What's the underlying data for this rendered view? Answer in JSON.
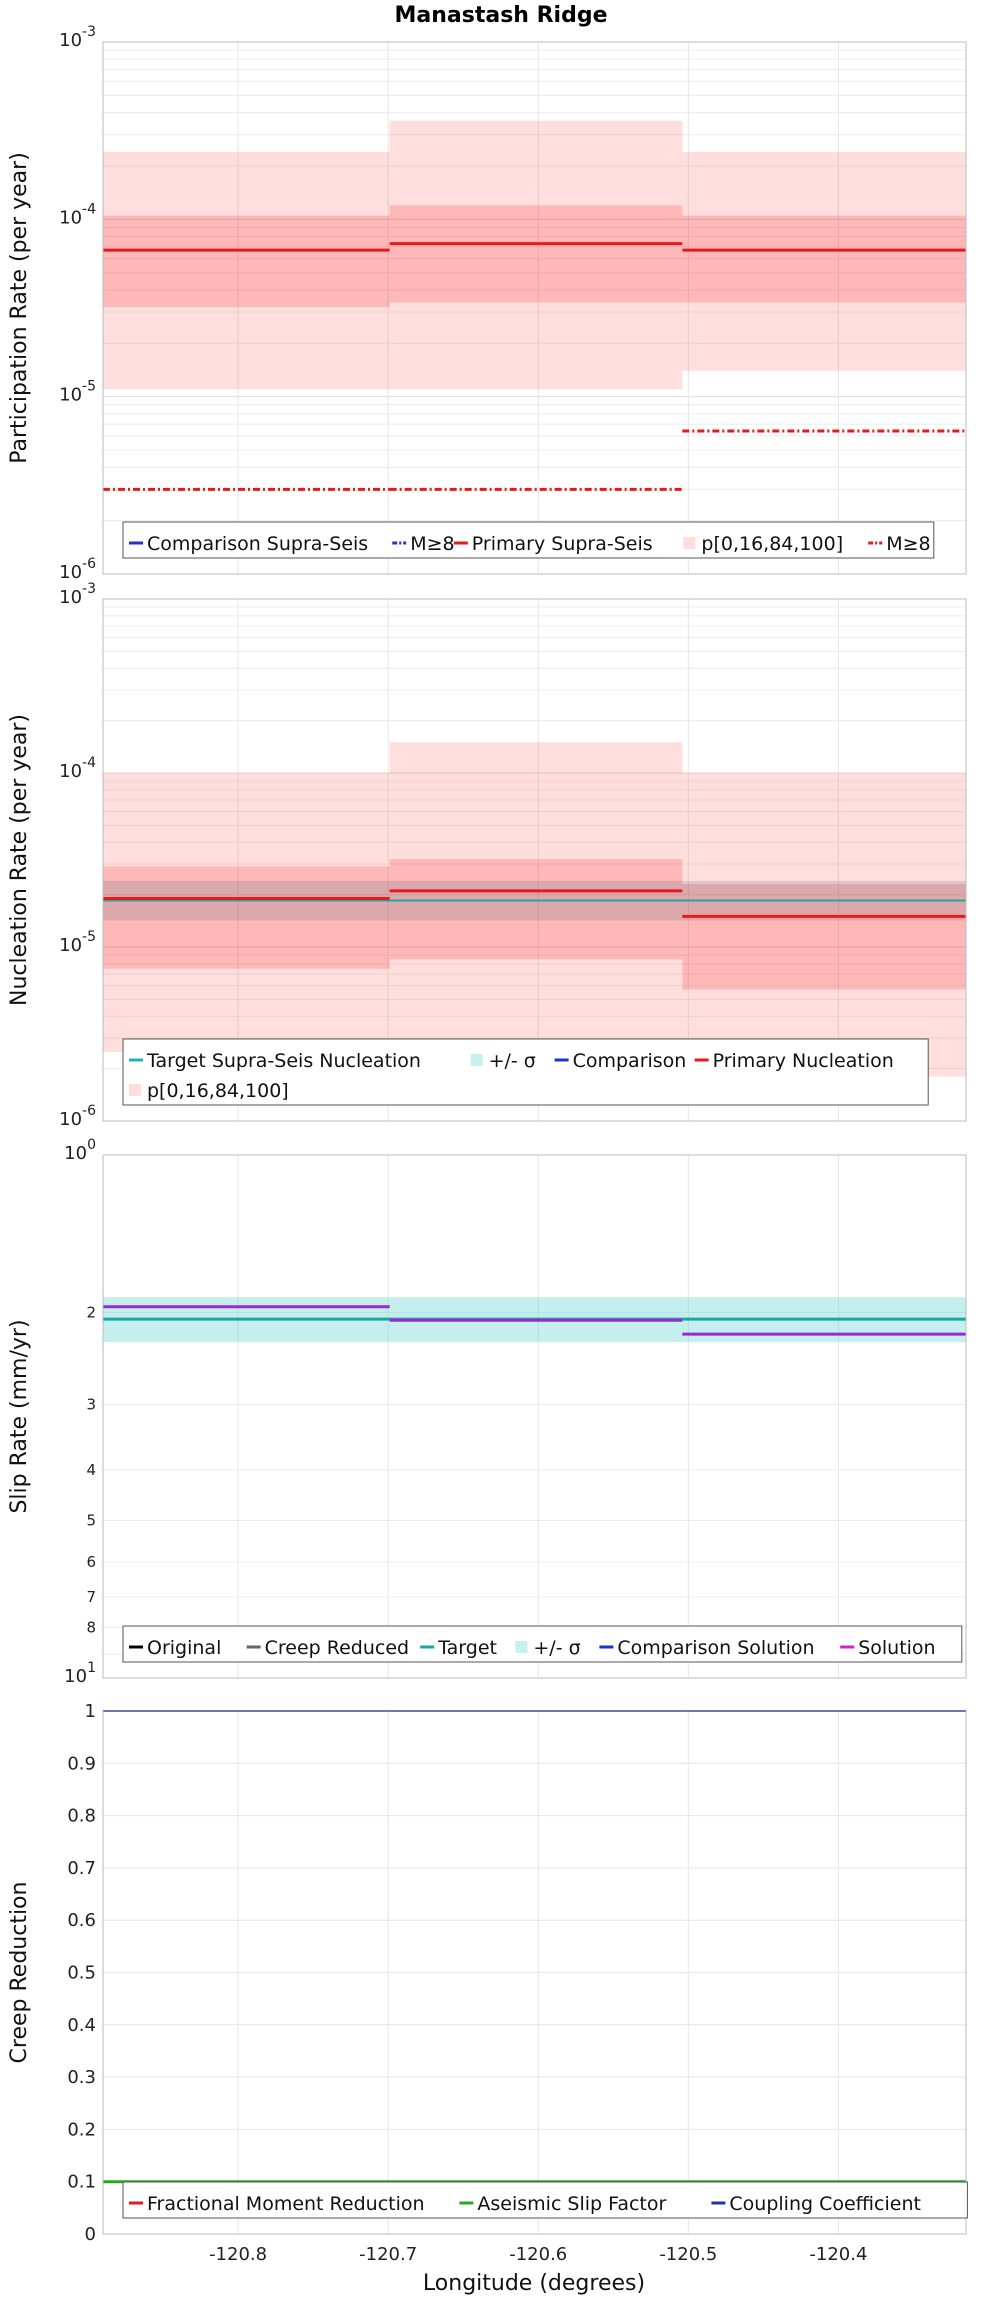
{
  "chart_data": {
    "title": "Manastash Ridge",
    "xlabel": "Longitude (degrees)",
    "xlim": [
      -120.89,
      -120.315
    ],
    "xticks": [
      -120.8,
      -120.7,
      -120.6,
      -120.5,
      -120.4
    ],
    "xtick_labels": [
      "-120.8",
      "-120.7",
      "-120.6",
      "-120.5",
      "-120.4"
    ],
    "sections": [
      {
        "x0": -120.89,
        "x1": -120.699
      },
      {
        "x0": -120.699,
        "x1": -120.504
      },
      {
        "x0": -120.504,
        "x1": -120.315
      }
    ],
    "panels": [
      {
        "id": "participation",
        "type": "step",
        "ylabel": "Participation Rate (per year)",
        "yscale": "log",
        "ylim": [
          1e-06,
          0.001
        ],
        "yticks": [
          {
            "base": "10",
            "exp": "-3",
            "value": 0.001
          },
          {
            "base": "10",
            "exp": "-4",
            "value": 0.0001
          },
          {
            "base": "10",
            "exp": "-5",
            "value": 1e-05
          },
          {
            "base": "10",
            "exp": "-6",
            "value": 1e-06
          }
        ],
        "bands": [
          {
            "name": "p[0,16,84,100]",
            "color": "#ff0000",
            "opacity": 0.13,
            "lo": [
              1.1e-05,
              1.1e-05,
              1.4e-05
            ],
            "hi": [
              0.00024,
              0.00036,
              0.00024
            ]
          },
          {
            "name": "p[0,16,84,100]",
            "color": "#ff0000",
            "opacity": 0.17,
            "lo": [
              3.2e-05,
              3.4e-05,
              3.4e-05
            ],
            "hi": [
              0.000105,
              0.00012,
              0.000105
            ]
          }
        ],
        "series": [
          {
            "name": "Primary Supra-Seis",
            "color": "#e41a1c",
            "width": 3,
            "dash": "",
            "values": [
              6.7e-05,
              7.3e-05,
              6.7e-05
            ]
          },
          {
            "name": "M≥8",
            "color": "#e41a1c",
            "width": 3,
            "dash": "7,3,2,3",
            "values": [
              3e-06,
              3e-06,
              6.4e-06
            ]
          }
        ],
        "legend": {
          "rows": [
            [
              {
                "label": "Comparison Supra-Seis",
                "color": "#2233cc",
                "style": "line",
                "dash": ""
              },
              {
                "label": "M≥8",
                "color": "#2233cc",
                "style": "line",
                "dash": "5,2,2,2"
              },
              {
                "label": "Primary Supra-Seis",
                "color": "#e41a1c",
                "style": "line",
                "dash": ""
              },
              {
                "label": "p[0,16,84,100]",
                "color": "#ffdddd",
                "style": "box",
                "dash": ""
              },
              {
                "label": "M≥8",
                "color": "#e41a1c",
                "style": "line",
                "dash": "5,2,2,2"
              }
            ]
          ]
        }
      },
      {
        "id": "nucleation",
        "type": "step",
        "ylabel": "Nucleation Rate (per year)",
        "yscale": "log",
        "ylim": [
          1e-06,
          0.001
        ],
        "yticks": [
          {
            "base": "10",
            "exp": "-3",
            "value": 0.001
          },
          {
            "base": "10",
            "exp": "-4",
            "value": 0.0001
          },
          {
            "base": "10",
            "exp": "-5",
            "value": 1e-05
          },
          {
            "base": "10",
            "exp": "-6",
            "value": 1e-06
          }
        ],
        "bands": [
          {
            "name": "p[0,16,84,100]",
            "color": "#ff0000",
            "opacity": 0.13,
            "lo": [
              2.5e-06,
              2.6e-06,
              1.8e-06
            ],
            "hi": [
              0.0001,
              0.00015,
              0.0001
            ]
          },
          {
            "name": "p[0,16,84,100]",
            "color": "#ff0000",
            "opacity": 0.17,
            "lo": [
              7.5e-06,
              8.5e-06,
              5.7e-06
            ],
            "hi": [
              2.9e-05,
              3.2e-05,
              2.3e-05
            ]
          },
          {
            "name": "+/- σ",
            "color": "#607080",
            "opacity": 0.22,
            "lo": [
              1.42e-05,
              1.42e-05,
              1.42e-05
            ],
            "hi": [
              2.4e-05,
              2.4e-05,
              2.4e-05
            ]
          }
        ],
        "series": [
          {
            "name": "Target Supra-Seis Nucleation",
            "color": "#1fa6a0",
            "width": 2,
            "dash": "",
            "values": [
              1.85e-05,
              1.85e-05,
              1.85e-05
            ]
          },
          {
            "name": "Primary Nucleation",
            "color": "#e41a1c",
            "width": 3,
            "dash": "",
            "values": [
              1.9e-05,
              2.1e-05,
              1.5e-05
            ]
          }
        ],
        "legend": {
          "rows": [
            [
              {
                "label": "Target Supra-Seis Nucleation",
                "color": "#1fb8b0",
                "style": "line",
                "dash": ""
              },
              {
                "label": "+/- σ",
                "color": "#c9f0f0",
                "style": "box",
                "dash": ""
              },
              {
                "label": "Comparison",
                "color": "#2233cc",
                "style": "line",
                "dash": ""
              },
              {
                "label": "Primary Nucleation",
                "color": "#e41a1c",
                "style": "line",
                "dash": ""
              }
            ],
            [
              {
                "label": "p[0,16,84,100]",
                "color": "#ffdddd",
                "style": "box",
                "dash": ""
              }
            ]
          ]
        }
      },
      {
        "id": "slip",
        "type": "step",
        "ylabel": "Slip Rate (mm/yr)",
        "yscale": "log",
        "ylim": [
          1,
          10
        ],
        "yticks": [
          {
            "base": "10",
            "exp": "0",
            "value": 1
          },
          {
            "base": "10",
            "exp": "1",
            "value": 10
          }
        ],
        "minor_ticks": [
          {
            "label": "2",
            "value": 2
          },
          {
            "label": "3",
            "value": 3
          },
          {
            "label": "4",
            "value": 4
          },
          {
            "label": "5",
            "value": 5
          },
          {
            "label": "6",
            "value": 6
          },
          {
            "label": "7",
            "value": 7
          },
          {
            "label": "8",
            "value": 8
          }
        ],
        "axis_inverted": true,
        "bands": [
          {
            "name": "+/- σ",
            "color": "#5ad0d0",
            "opacity": 0.35,
            "lo": [
              1.87,
              1.87,
              1.87
            ],
            "hi": [
              2.28,
              2.28,
              2.28
            ]
          }
        ],
        "series": [
          {
            "name": "Target",
            "color": "#1aa69e",
            "width": 3,
            "dash": "",
            "values": [
              2.06,
              2.06,
              2.06
            ]
          },
          {
            "name": "Solution",
            "color": "#9a2ad0",
            "width": 3,
            "dash": "",
            "values": [
              1.95,
              2.07,
              2.2
            ]
          }
        ],
        "legend": {
          "rows": [
            [
              {
                "label": "Original",
                "color": "#000000",
                "style": "line",
                "dash": ""
              },
              {
                "label": "Creep Reduced",
                "color": "#666666",
                "style": "line",
                "dash": ""
              },
              {
                "label": "Target",
                "color": "#1aa69e",
                "style": "line",
                "dash": ""
              },
              {
                "label": "+/- σ",
                "color": "#c9f0f0",
                "style": "box",
                "dash": ""
              },
              {
                "label": "Comparison Solution",
                "color": "#2233cc",
                "style": "line",
                "dash": ""
              },
              {
                "label": "Solution",
                "color": "#cc22cc",
                "style": "line",
                "dash": ""
              }
            ]
          ]
        }
      },
      {
        "id": "creep",
        "type": "step",
        "ylabel": "Creep Reduction",
        "yscale": "linear",
        "ylim": [
          0,
          1
        ],
        "yticks": [
          {
            "label": "1",
            "value": 1.0
          },
          {
            "label": "0.9",
            "value": 0.9
          },
          {
            "label": "0.8",
            "value": 0.8
          },
          {
            "label": "0.7",
            "value": 0.7
          },
          {
            "label": "0.6",
            "value": 0.6
          },
          {
            "label": "0.5",
            "value": 0.5
          },
          {
            "label": "0.4",
            "value": 0.4
          },
          {
            "label": "0.3",
            "value": 0.3
          },
          {
            "label": "0.2",
            "value": 0.2
          },
          {
            "label": "0.1",
            "value": 0.1
          },
          {
            "label": "0",
            "value": 0.0
          }
        ],
        "bands": [],
        "series": [
          {
            "name": "Coupling Coefficient",
            "color": "#2233aa",
            "width": 2,
            "dash": "",
            "values": [
              1.0,
              1.0,
              1.0
            ]
          },
          {
            "name": "Aseismic Slip Factor",
            "color": "#22aa22",
            "width": 3,
            "dash": "",
            "values": [
              0.1,
              0.1,
              0.1
            ]
          }
        ],
        "legend": {
          "rows": [
            [
              {
                "label": "Fractional Moment Reduction",
                "color": "#e41a1c",
                "style": "line",
                "dash": ""
              },
              {
                "label": "Aseismic Slip Factor",
                "color": "#22aa22",
                "style": "line",
                "dash": ""
              },
              {
                "label": "Coupling Coefficient",
                "color": "#2233aa",
                "style": "line",
                "dash": ""
              }
            ]
          ]
        }
      }
    ]
  }
}
